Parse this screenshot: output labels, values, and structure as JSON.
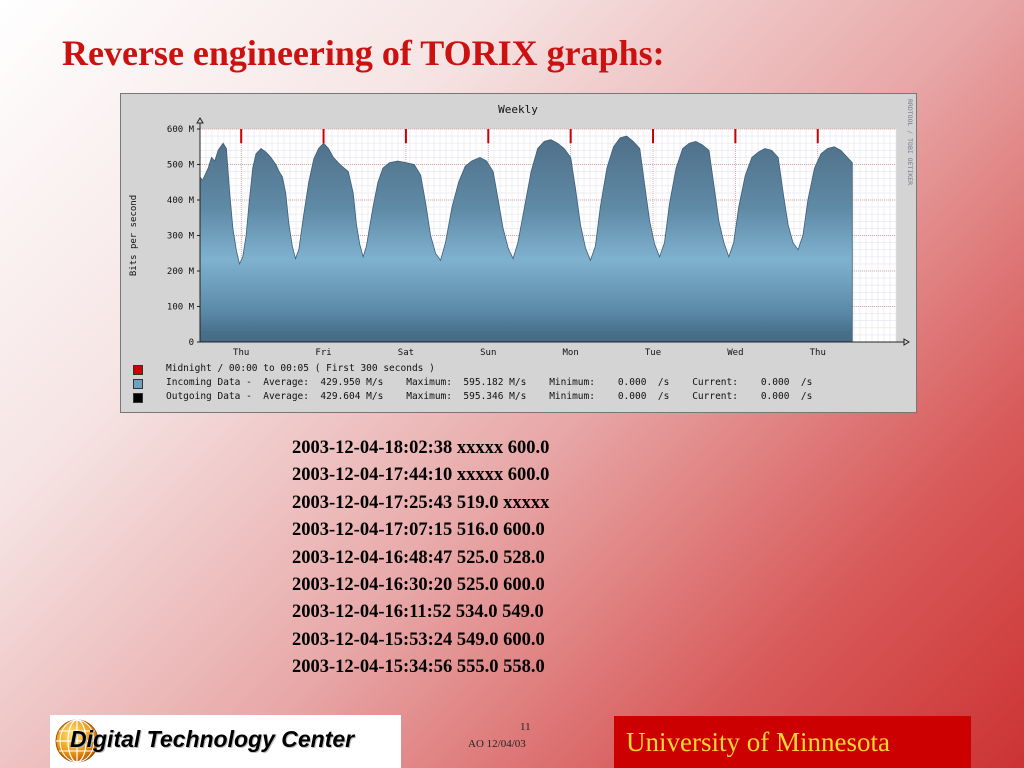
{
  "slide": {
    "title": "Reverse engineering of TORIX graphs:"
  },
  "chart_data": {
    "type": "area",
    "title": "Weekly",
    "ylabel": "Bits per second",
    "side_label": "RRDTOOL / TOBI OETIKER",
    "yticks": [
      "0",
      "100 M",
      "200 M",
      "300 M",
      "400 M",
      "500 M",
      "600 M"
    ],
    "ylim": [
      0,
      600
    ],
    "xticks": [
      "Thu",
      "Fri",
      "Sat",
      "Sun",
      "Mon",
      "Tue",
      "Wed",
      "Thu"
    ],
    "x_day_range": [
      0,
      8.45
    ],
    "midnight_markers_day": [
      0.5,
      1.5,
      2.5,
      3.5,
      4.5,
      5.5,
      6.5,
      7.5
    ],
    "series": [
      {
        "name": "Incoming Data",
        "color": "#4f7590",
        "daily_profile": [
          [
            0.0,
            465
          ],
          [
            0.03,
            455
          ],
          [
            0.06,
            470
          ],
          [
            0.1,
            490
          ],
          [
            0.14,
            520
          ],
          [
            0.18,
            510
          ],
          [
            0.22,
            540
          ],
          [
            0.28,
            560
          ],
          [
            0.32,
            545
          ],
          [
            0.36,
            420
          ],
          [
            0.4,
            320
          ],
          [
            0.44,
            260
          ],
          [
            0.48,
            220
          ],
          [
            0.52,
            240
          ],
          [
            0.56,
            300
          ],
          [
            0.6,
            400
          ],
          [
            0.64,
            490
          ],
          [
            0.68,
            530
          ],
          [
            0.74,
            545
          ],
          [
            0.8,
            535
          ],
          [
            0.86,
            520
          ],
          [
            0.92,
            500
          ],
          [
            0.96,
            480
          ],
          [
            1.0,
            465
          ],
          [
            1.04,
            420
          ],
          [
            1.08,
            330
          ],
          [
            1.12,
            270
          ],
          [
            1.16,
            235
          ],
          [
            1.2,
            260
          ],
          [
            1.26,
            360
          ],
          [
            1.32,
            450
          ],
          [
            1.38,
            515
          ],
          [
            1.44,
            545
          ],
          [
            1.5,
            560
          ],
          [
            1.56,
            545
          ],
          [
            1.62,
            520
          ],
          [
            1.7,
            500
          ],
          [
            1.8,
            480
          ],
          [
            1.86,
            420
          ],
          [
            1.9,
            330
          ],
          [
            1.94,
            275
          ],
          [
            1.98,
            240
          ],
          [
            2.02,
            270
          ],
          [
            2.1,
            380
          ],
          [
            2.16,
            450
          ],
          [
            2.22,
            490
          ],
          [
            2.3,
            505
          ],
          [
            2.4,
            510
          ],
          [
            2.5,
            505
          ],
          [
            2.6,
            500
          ],
          [
            2.68,
            470
          ],
          [
            2.74,
            390
          ],
          [
            2.8,
            300
          ],
          [
            2.86,
            250
          ],
          [
            2.92,
            230
          ],
          [
            2.98,
            280
          ],
          [
            3.06,
            380
          ],
          [
            3.14,
            450
          ],
          [
            3.22,
            495
          ],
          [
            3.3,
            510
          ],
          [
            3.4,
            520
          ],
          [
            3.48,
            510
          ],
          [
            3.56,
            480
          ],
          [
            3.62,
            400
          ],
          [
            3.68,
            320
          ],
          [
            3.74,
            265
          ],
          [
            3.8,
            235
          ],
          [
            3.86,
            280
          ],
          [
            3.94,
            380
          ],
          [
            4.02,
            480
          ],
          [
            4.1,
            545
          ],
          [
            4.18,
            565
          ],
          [
            4.26,
            570
          ],
          [
            4.34,
            560
          ],
          [
            4.42,
            545
          ],
          [
            4.5,
            520
          ],
          [
            4.56,
            430
          ],
          [
            4.62,
            330
          ],
          [
            4.68,
            265
          ],
          [
            4.74,
            230
          ],
          [
            4.8,
            270
          ],
          [
            4.86,
            380
          ],
          [
            4.94,
            490
          ],
          [
            5.02,
            550
          ],
          [
            5.1,
            575
          ],
          [
            5.18,
            580
          ],
          [
            5.26,
            565
          ],
          [
            5.34,
            545
          ],
          [
            5.4,
            440
          ],
          [
            5.46,
            340
          ],
          [
            5.52,
            275
          ],
          [
            5.58,
            240
          ],
          [
            5.64,
            280
          ],
          [
            5.7,
            390
          ],
          [
            5.78,
            490
          ],
          [
            5.86,
            545
          ],
          [
            5.94,
            560
          ],
          [
            6.02,
            565
          ],
          [
            6.1,
            555
          ],
          [
            6.18,
            540
          ],
          [
            6.24,
            440
          ],
          [
            6.3,
            340
          ],
          [
            6.36,
            280
          ],
          [
            6.42,
            240
          ],
          [
            6.48,
            280
          ],
          [
            6.54,
            380
          ],
          [
            6.62,
            470
          ],
          [
            6.7,
            520
          ],
          [
            6.78,
            535
          ],
          [
            6.86,
            545
          ],
          [
            6.94,
            540
          ],
          [
            7.02,
            520
          ],
          [
            7.08,
            420
          ],
          [
            7.14,
            330
          ],
          [
            7.2,
            280
          ],
          [
            7.26,
            260
          ],
          [
            7.32,
            300
          ],
          [
            7.38,
            400
          ],
          [
            7.46,
            490
          ],
          [
            7.54,
            530
          ],
          [
            7.62,
            545
          ],
          [
            7.7,
            550
          ],
          [
            7.78,
            540
          ],
          [
            7.86,
            520
          ],
          [
            7.92,
            505
          ]
        ]
      },
      {
        "name": "Outgoing Data",
        "color": "#000000"
      }
    ],
    "legend": [
      {
        "color": "#cc0000",
        "text": "Midnight / 00:00 to 00:05 ( First 300 seconds )"
      },
      {
        "color": "#6fa0bf",
        "text": "Incoming Data -  Average:  429.950 M/s    Maximum:  595.182 M/s    Minimum:    0.000  /s    Current:    0.000  /s"
      },
      {
        "color": "#000000",
        "text": "Outgoing Data -  Average:  429.604 M/s    Maximum:  595.346 M/s    Minimum:    0.000  /s    Current:    0.000  /s"
      }
    ]
  },
  "log_lines": [
    "2003-12-04-18:02:38 xxxxx 600.0",
    "2003-12-04-17:44:10 xxxxx 600.0",
    "2003-12-04-17:25:43 519.0 xxxxx",
    "2003-12-04-17:07:15 516.0 600.0",
    "2003-12-04-16:48:47 525.0 528.0",
    "2003-12-04-16:30:20 525.0 600.0",
    "2003-12-04-16:11:52 534.0 549.0",
    "2003-12-04-15:53:24 549.0 600.0",
    "2003-12-04-15:34:56 555.0 558.0"
  ],
  "footer": {
    "logo_text": "Digital Technology Center",
    "page_number": "11",
    "date": "AO 12/04/03",
    "university": "University of Minnesota"
  }
}
